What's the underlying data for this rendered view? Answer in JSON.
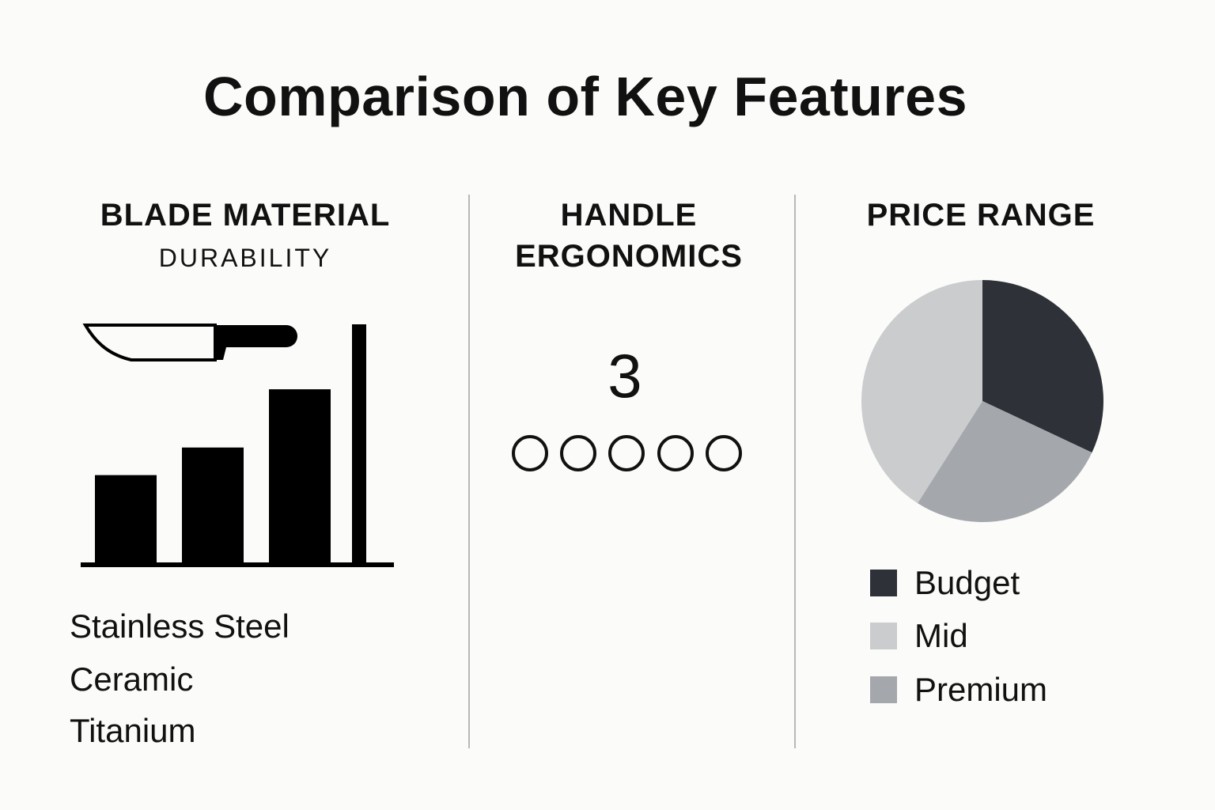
{
  "title": "Comparison of Key Features",
  "blade": {
    "heading": "BLADE MATERIAL",
    "subheading": "DURABILITY",
    "materials": [
      "Stainless Steel",
      "Ceramic",
      "Titanium"
    ],
    "icon": "knife-icon"
  },
  "handle": {
    "heading_line1": "HANDLE",
    "heading_line2": "ERGONOMICS",
    "rating": "3",
    "circle_count": 5,
    "filled": 0
  },
  "price": {
    "heading": "PRICE RANGE"
  },
  "chart_data": [
    {
      "type": "bar",
      "title": "DURABILITY",
      "categories": [
        "",
        "",
        ""
      ],
      "values": [
        1.45,
        1.9,
        2.85
      ],
      "ylim": [
        0,
        4
      ],
      "grid": false,
      "color": "#000000"
    },
    {
      "type": "pie",
      "title": "PRICE RANGE",
      "series": [
        {
          "name": "Budget",
          "value": 32,
          "color": "#2e3238"
        },
        {
          "name": "Premium",
          "value": 27,
          "color": "#a4a7ac"
        },
        {
          "name": "Mid",
          "value": 41,
          "color": "#cbcccd"
        }
      ],
      "legend": [
        {
          "name": "Budget",
          "color": "#2e3238"
        },
        {
          "name": "Mid",
          "color": "#cbcccd"
        },
        {
          "name": "Premium",
          "color": "#a4a7ac"
        }
      ],
      "legend_position": "bottom"
    }
  ]
}
